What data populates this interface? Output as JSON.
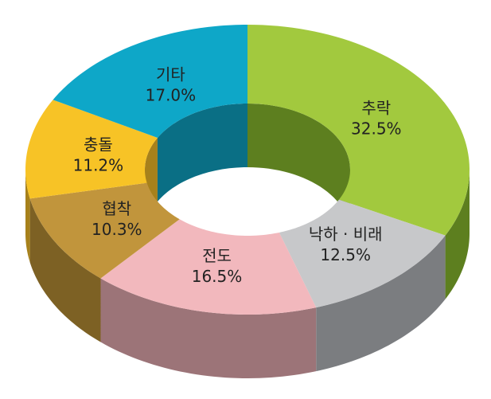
{
  "chart_data": {
    "type": "pie",
    "style": "3d-donut",
    "legend": "none",
    "slices": [
      {
        "label": "추락",
        "value": 32.5,
        "value_text": "32.5%",
        "top_color": "#a2c93e",
        "side_color": "#5d7f1f"
      },
      {
        "label": "낙하 · 비래",
        "value": 12.5,
        "value_text": "12.5%",
        "top_color": "#c7c8ca",
        "side_color": "#7b7d80"
      },
      {
        "label": "전도",
        "value": 16.5,
        "value_text": "16.5%",
        "top_color": "#f2b8bd",
        "side_color": "#9c7478"
      },
      {
        "label": "협착",
        "value": 10.3,
        "value_text": "10.3%",
        "top_color": "#c1953c",
        "side_color": "#7d6124"
      },
      {
        "label": "충돌",
        "value": 11.2,
        "value_text": "11.2%",
        "top_color": "#f7c326",
        "side_color": "#a7811b"
      },
      {
        "label": "기타",
        "value": 17.0,
        "value_text": "17.0%",
        "top_color": "#0ea7c8",
        "side_color": "#0a6f85"
      }
    ]
  }
}
